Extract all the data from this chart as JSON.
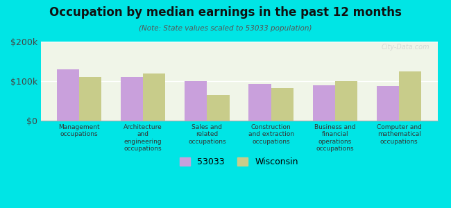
{
  "title": "Occupation by median earnings in the past 12 months",
  "subtitle": "(Note: State values scaled to 53033 population)",
  "categories": [
    "Management\noccupations",
    "Architecture\nand\nengineering\noccupations",
    "Sales and\nrelated\noccupations",
    "Construction\nand extraction\noccupations",
    "Business and\nfinancial\noperations\noccupations",
    "Computer and\nmathematical\noccupations"
  ],
  "values_53033": [
    130000,
    110000,
    100000,
    93000,
    90000,
    87000
  ],
  "values_wi": [
    110000,
    120000,
    65000,
    83000,
    100000,
    125000
  ],
  "color_53033": "#c9a0dc",
  "color_wi": "#c8cc8a",
  "background_outer": "#00e5e5",
  "background_plot": "#f0f5e8",
  "ylim": [
    0,
    200000
  ],
  "yticks": [
    0,
    100000,
    200000
  ],
  "ytick_labels": [
    "$0",
    "$100k",
    "$200k"
  ],
  "legend_53033": "53033",
  "legend_wi": "Wisconsin",
  "bar_width": 0.35,
  "watermark": "City-Data.com"
}
